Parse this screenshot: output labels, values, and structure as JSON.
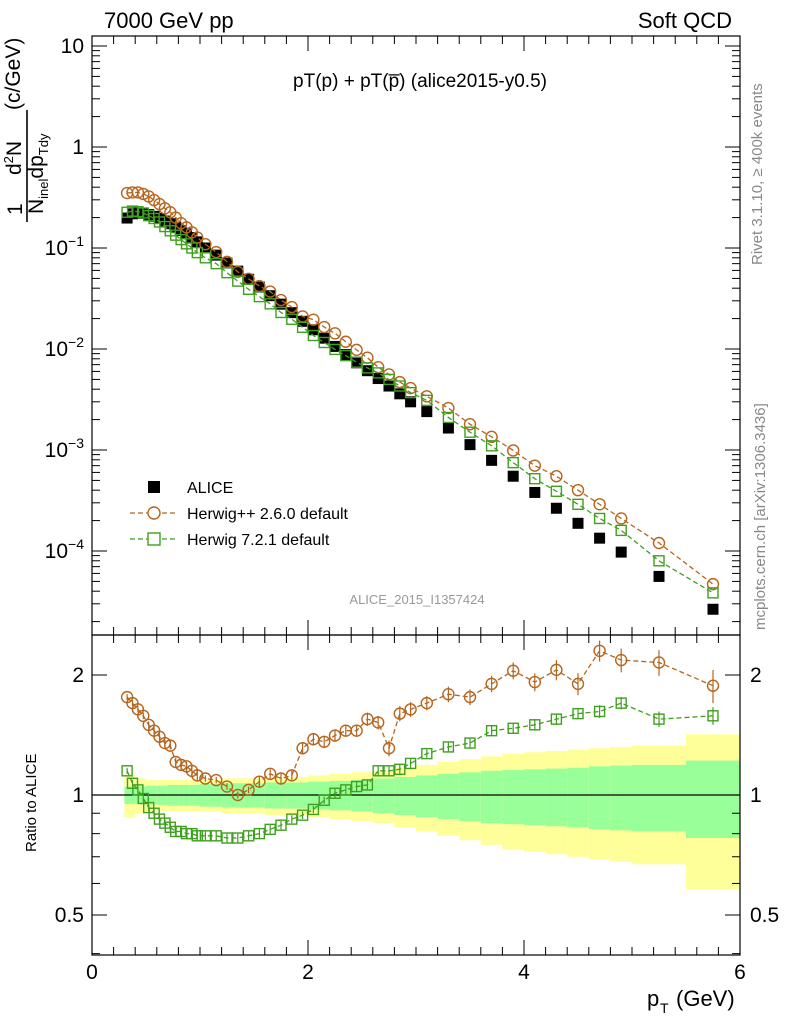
{
  "header": {
    "left": "7000 GeV pp",
    "right": "Soft QCD"
  },
  "side_labels": {
    "rivet": "Rivet 3.1.10, ≥ 400k events",
    "mcplots": "mcplots.cern.ch [arXiv:1306.3436]"
  },
  "analysis_id": "ALICE_2015_I1357424",
  "chart_data": [
    {
      "type": "scatter",
      "panel": "main",
      "title": "pT(p) + pT(p̅) (alice2015-y0.5)",
      "ylabel": "1/N_inel d²N/dp_T dy (c/GeV)",
      "xlim": [
        0,
        6
      ],
      "ylim": [
        2e-05,
        12
      ],
      "yscale": "log",
      "x_ticks": [
        "0",
        "2",
        "4",
        "6"
      ],
      "y_ticks": [
        "10⁻⁴",
        "10⁻³",
        "10⁻²",
        "10⁻¹",
        "1",
        "10"
      ],
      "legend_position": "bottom-left",
      "x": [
        0.325,
        0.375,
        0.425,
        0.475,
        0.525,
        0.575,
        0.625,
        0.675,
        0.725,
        0.775,
        0.825,
        0.875,
        0.925,
        0.975,
        1.05,
        1.15,
        1.25,
        1.35,
        1.45,
        1.55,
        1.65,
        1.75,
        1.85,
        1.95,
        2.05,
        2.15,
        2.25,
        2.35,
        2.45,
        2.55,
        2.65,
        2.75,
        2.85,
        2.95,
        3.1,
        3.3,
        3.5,
        3.7,
        3.9,
        4.1,
        4.3,
        4.5,
        4.7,
        4.9,
        5.25,
        5.75
      ],
      "series": [
        {
          "name": "ALICE",
          "color": "#000000",
          "marker": "filled-square",
          "values": [
            0.198,
            0.218,
            0.222,
            0.22,
            0.214,
            0.206,
            0.196,
            0.185,
            0.174,
            0.161,
            0.149,
            0.138,
            0.127,
            0.115,
            0.1,
            0.085,
            0.071,
            0.059,
            0.049,
            0.041,
            0.0337,
            0.0278,
            0.0229,
            0.0188,
            0.0155,
            0.0128,
            0.0106,
            0.0088,
            0.0073,
            0.0061,
            0.0051,
            0.0043,
            0.0036,
            0.003,
            0.0024,
            0.00165,
            0.00113,
            0.00079,
            0.00055,
            0.00038,
            0.000265,
            0.000188,
            0.000134,
            9.75e-05,
            5.6e-05,
            2.65e-05
          ]
        },
        {
          "name": "Herwig++ 2.6.0 default",
          "color": "#b5651d",
          "marker": "open-circle",
          "line": "dashed",
          "values": [
            0.35,
            0.355,
            0.355,
            0.343,
            0.324,
            0.298,
            0.272,
            0.247,
            0.226,
            0.2,
            0.176,
            0.16,
            0.143,
            0.127,
            0.109,
            0.091,
            0.073,
            0.058,
            0.0495,
            0.042,
            0.037,
            0.0305,
            0.026,
            0.021,
            0.0195,
            0.0165,
            0.0143,
            0.0118,
            0.0098,
            0.0082,
            0.0066,
            0.0056,
            0.0047,
            0.0041,
            0.0034,
            0.0026,
            0.0018,
            0.00135,
            0.00099,
            0.0007,
            0.00055,
            0.0004,
            0.00029,
            0.00021,
            0.00012,
            4.7e-05
          ]
        },
        {
          "name": "Herwig 7.2.1 default",
          "color": "#3f9f1f",
          "marker": "open-square",
          "line": "dashed",
          "values": [
            0.226,
            0.232,
            0.229,
            0.222,
            0.209,
            0.196,
            0.181,
            0.163,
            0.148,
            0.134,
            0.121,
            0.11,
            0.1,
            0.09,
            0.08,
            0.07,
            0.057,
            0.047,
            0.039,
            0.033,
            0.028,
            0.023,
            0.0197,
            0.0164,
            0.0136,
            0.0116,
            0.0099,
            0.0086,
            0.0074,
            0.0065,
            0.0058,
            0.005,
            0.0043,
            0.0037,
            0.0031,
            0.0021,
            0.0015,
            0.0011,
            0.00075,
            0.00052,
            0.00039,
            0.00029,
            0.00021,
            0.00016,
            8e-05,
            3.85e-05
          ]
        }
      ]
    },
    {
      "type": "scatter",
      "panel": "ratio",
      "ylabel": "Ratio to ALICE",
      "xlabel": "p_T (GeV)",
      "xlim": [
        0,
        6
      ],
      "ylim": [
        0.4,
        2.4
      ],
      "yscale": "log",
      "x_ticks": [
        "0",
        "2",
        "4",
        "6"
      ],
      "y_ticks": [
        "0.5",
        "1",
        "2"
      ],
      "x": [
        0.325,
        0.375,
        0.425,
        0.475,
        0.525,
        0.575,
        0.625,
        0.675,
        0.725,
        0.775,
        0.825,
        0.875,
        0.925,
        0.975,
        1.05,
        1.15,
        1.25,
        1.35,
        1.45,
        1.55,
        1.65,
        1.75,
        1.85,
        1.95,
        2.05,
        2.15,
        2.25,
        2.35,
        2.45,
        2.55,
        2.65,
        2.75,
        2.85,
        2.95,
        3.1,
        3.3,
        3.5,
        3.7,
        3.9,
        4.1,
        4.3,
        4.5,
        4.7,
        4.9,
        5.25,
        5.75
      ],
      "band_edges": [
        0.3,
        0.4,
        0.5,
        0.6,
        0.7,
        0.8,
        0.9,
        1.0,
        1.2,
        1.4,
        1.6,
        1.8,
        2.0,
        2.2,
        2.4,
        2.6,
        2.8,
        3.0,
        3.2,
        3.4,
        3.6,
        3.8,
        4.0,
        4.2,
        4.4,
        4.6,
        4.8,
        5.0,
        5.5,
        6.0
      ],
      "band_green": [
        0.05,
        0.05,
        0.055,
        0.055,
        0.06,
        0.06,
        0.06,
        0.065,
        0.07,
        0.07,
        0.075,
        0.075,
        0.08,
        0.085,
        0.09,
        0.1,
        0.11,
        0.12,
        0.13,
        0.14,
        0.15,
        0.155,
        0.16,
        0.165,
        0.17,
        0.18,
        0.185,
        0.19,
        0.22
      ],
      "band_yellow": [
        0.12,
        0.1,
        0.09,
        0.09,
        0.09,
        0.09,
        0.09,
        0.09,
        0.1,
        0.1,
        0.11,
        0.11,
        0.12,
        0.13,
        0.14,
        0.15,
        0.17,
        0.19,
        0.21,
        0.23,
        0.25,
        0.27,
        0.28,
        0.29,
        0.3,
        0.31,
        0.32,
        0.33,
        0.42
      ],
      "series": [
        {
          "name": "Herwig++ 2.6.0 default",
          "color": "#b5651d",
          "values": [
            1.76,
            1.7,
            1.64,
            1.58,
            1.5,
            1.45,
            1.4,
            1.35,
            1.33,
            1.21,
            1.19,
            1.18,
            1.15,
            1.12,
            1.1,
            1.09,
            1.05,
            1.0,
            1.03,
            1.08,
            1.13,
            1.1,
            1.12,
            1.31,
            1.38,
            1.36,
            1.41,
            1.45,
            1.45,
            1.55,
            1.52,
            1.31,
            1.6,
            1.64,
            1.7,
            1.79,
            1.76,
            1.9,
            2.05,
            1.92,
            2.06,
            1.9,
            2.3,
            2.18,
            2.15,
            1.88
          ],
          "errors": [
            0.03,
            0.03,
            0.03,
            0.03,
            0.03,
            0.03,
            0.03,
            0.03,
            0.03,
            0.03,
            0.03,
            0.03,
            0.03,
            0.03,
            0.02,
            0.02,
            0.02,
            0.02,
            0.02,
            0.03,
            0.03,
            0.03,
            0.03,
            0.04,
            0.04,
            0.04,
            0.05,
            0.05,
            0.05,
            0.06,
            0.06,
            0.06,
            0.07,
            0.07,
            0.07,
            0.08,
            0.08,
            0.09,
            0.1,
            0.1,
            0.12,
            0.12,
            0.14,
            0.15,
            0.16,
            0.18
          ]
        },
        {
          "name": "Herwig 7.2.1 default",
          "color": "#3f9f1f",
          "values": [
            1.15,
            1.07,
            1.03,
            0.98,
            0.93,
            0.9,
            0.87,
            0.85,
            0.83,
            0.81,
            0.81,
            0.8,
            0.8,
            0.79,
            0.79,
            0.79,
            0.78,
            0.78,
            0.79,
            0.8,
            0.82,
            0.84,
            0.87,
            0.89,
            0.92,
            0.97,
            1.01,
            1.03,
            1.05,
            1.06,
            1.15,
            1.15,
            1.16,
            1.2,
            1.27,
            1.32,
            1.35,
            1.45,
            1.47,
            1.5,
            1.55,
            1.6,
            1.62,
            1.7,
            1.55,
            1.58
          ],
          "errors": [
            0.02,
            0.02,
            0.02,
            0.02,
            0.02,
            0.02,
            0.02,
            0.02,
            0.02,
            0.02,
            0.02,
            0.02,
            0.02,
            0.02,
            0.02,
            0.02,
            0.02,
            0.02,
            0.02,
            0.02,
            0.02,
            0.02,
            0.02,
            0.02,
            0.02,
            0.02,
            0.03,
            0.03,
            0.03,
            0.03,
            0.03,
            0.03,
            0.03,
            0.03,
            0.03,
            0.04,
            0.04,
            0.04,
            0.04,
            0.05,
            0.05,
            0.05,
            0.06,
            0.06,
            0.07,
            0.08
          ]
        }
      ]
    }
  ]
}
